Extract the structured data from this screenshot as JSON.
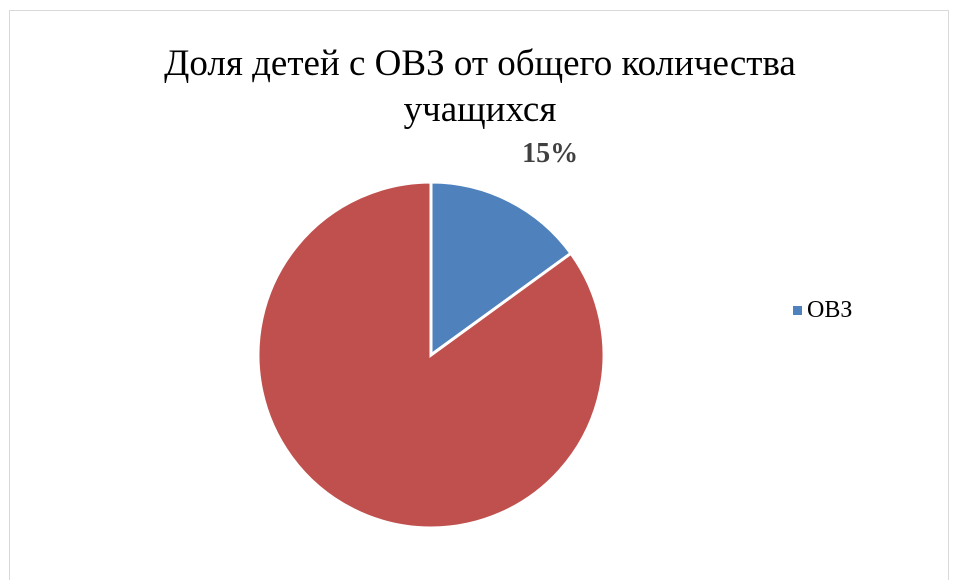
{
  "chart_data": {
    "type": "pie",
    "title": "Доля детей с ОВЗ от общего количества учащихся",
    "title_lines": [
      "Доля детей с ОВЗ от общего количества",
      "учащихся"
    ],
    "slices": [
      {
        "name": "ОВЗ",
        "value": 15,
        "color": "#4f81bd",
        "label": "15%"
      },
      {
        "name": "",
        "value": 85,
        "color": "#c0504d",
        "label": ""
      }
    ],
    "legend": {
      "position": "right",
      "entries": [
        {
          "name": "ОВЗ",
          "color": "#4f81bd"
        }
      ]
    }
  }
}
